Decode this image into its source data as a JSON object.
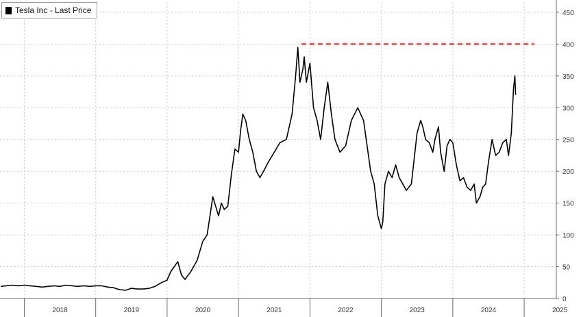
{
  "legend": {
    "label": "Tesla Inc - Last Price"
  },
  "colors": {
    "price_line": "#000000",
    "reference_line": "#e0322b",
    "grid": "#c8c8c8",
    "axis": "#6a6a6a",
    "text": "#333333"
  },
  "chart_data": {
    "type": "line",
    "title": "",
    "xlabel": "",
    "ylabel": "",
    "legend": [
      "Tesla Inc - Last Price"
    ],
    "legend_position": "top-left",
    "x_range": [
      2017.66,
      2025.45
    ],
    "y_range": [
      0,
      465
    ],
    "y_axis_side": "right",
    "grid": true,
    "x_tick_labels": [
      "2018",
      "2019",
      "2020",
      "2021",
      "2022",
      "2023",
      "2024",
      "2025"
    ],
    "y_tick_labels": [
      "0",
      "50",
      "100",
      "150",
      "200",
      "250",
      "300",
      "350",
      "400",
      "450"
    ],
    "y_ticks": [
      0,
      50,
      100,
      150,
      200,
      250,
      300,
      350,
      400,
      450
    ],
    "reference_line": {
      "y": 400,
      "x_start": 2021.88,
      "x_end": 2025.14,
      "style": "dashed"
    },
    "series": [
      {
        "name": "Tesla Inc - Last Price",
        "x": [
          2017.67,
          2017.75,
          2017.83,
          2017.92,
          2018.0,
          2018.08,
          2018.17,
          2018.25,
          2018.33,
          2018.42,
          2018.5,
          2018.58,
          2018.67,
          2018.75,
          2018.83,
          2018.92,
          2019.0,
          2019.08,
          2019.17,
          2019.25,
          2019.33,
          2019.42,
          2019.5,
          2019.58,
          2019.67,
          2019.75,
          2019.83,
          2019.92,
          2020.0,
          2020.05,
          2020.1,
          2020.15,
          2020.2,
          2020.25,
          2020.33,
          2020.42,
          2020.5,
          2020.56,
          2020.6,
          2020.64,
          2020.68,
          2020.72,
          2020.76,
          2020.8,
          2020.85,
          2020.9,
          2020.95,
          2021.0,
          2021.03,
          2021.06,
          2021.1,
          2021.15,
          2021.2,
          2021.25,
          2021.3,
          2021.35,
          2021.42,
          2021.5,
          2021.58,
          2021.67,
          2021.75,
          2021.8,
          2021.83,
          2021.86,
          2021.9,
          2021.92,
          2021.95,
          2022.0,
          2022.05,
          2022.1,
          2022.15,
          2022.2,
          2022.25,
          2022.3,
          2022.35,
          2022.42,
          2022.5,
          2022.58,
          2022.67,
          2022.75,
          2022.8,
          2022.85,
          2022.9,
          2022.95,
          2023.0,
          2023.02,
          2023.05,
          2023.1,
          2023.15,
          2023.2,
          2023.25,
          2023.3,
          2023.35,
          2023.42,
          2023.5,
          2023.55,
          2023.58,
          2023.62,
          2023.67,
          2023.72,
          2023.75,
          2023.8,
          2023.83,
          2023.88,
          2023.92,
          2023.96,
          2024.0,
          2024.05,
          2024.1,
          2024.15,
          2024.2,
          2024.25,
          2024.3,
          2024.33,
          2024.38,
          2024.42,
          2024.46,
          2024.5,
          2024.55,
          2024.6,
          2024.65,
          2024.7,
          2024.75,
          2024.78,
          2024.82,
          2024.85,
          2024.87,
          2024.88
        ],
        "y": [
          19,
          20,
          21,
          20,
          21,
          20,
          19,
          18,
          19,
          20,
          19,
          21,
          20,
          19,
          20,
          19,
          20,
          20,
          18,
          17,
          14,
          13,
          16,
          15,
          15,
          16,
          19,
          25,
          29,
          42,
          50,
          58,
          37,
          30,
          42,
          60,
          90,
          100,
          130,
          160,
          145,
          130,
          150,
          140,
          145,
          195,
          235,
          230,
          265,
          290,
          280,
          250,
          230,
          200,
          190,
          200,
          215,
          230,
          245,
          250,
          290,
          350,
          395,
          340,
          360,
          380,
          340,
          370,
          300,
          280,
          250,
          300,
          340,
          290,
          250,
          230,
          240,
          280,
          300,
          280,
          240,
          200,
          180,
          130,
          110,
          120,
          180,
          200,
          190,
          210,
          190,
          180,
          170,
          180,
          260,
          280,
          270,
          250,
          245,
          230,
          250,
          270,
          230,
          200,
          240,
          250,
          245,
          210,
          185,
          190,
          175,
          170,
          180,
          150,
          160,
          175,
          180,
          215,
          250,
          225,
          230,
          245,
          250,
          225,
          260,
          330,
          350,
          320
        ]
      }
    ]
  }
}
